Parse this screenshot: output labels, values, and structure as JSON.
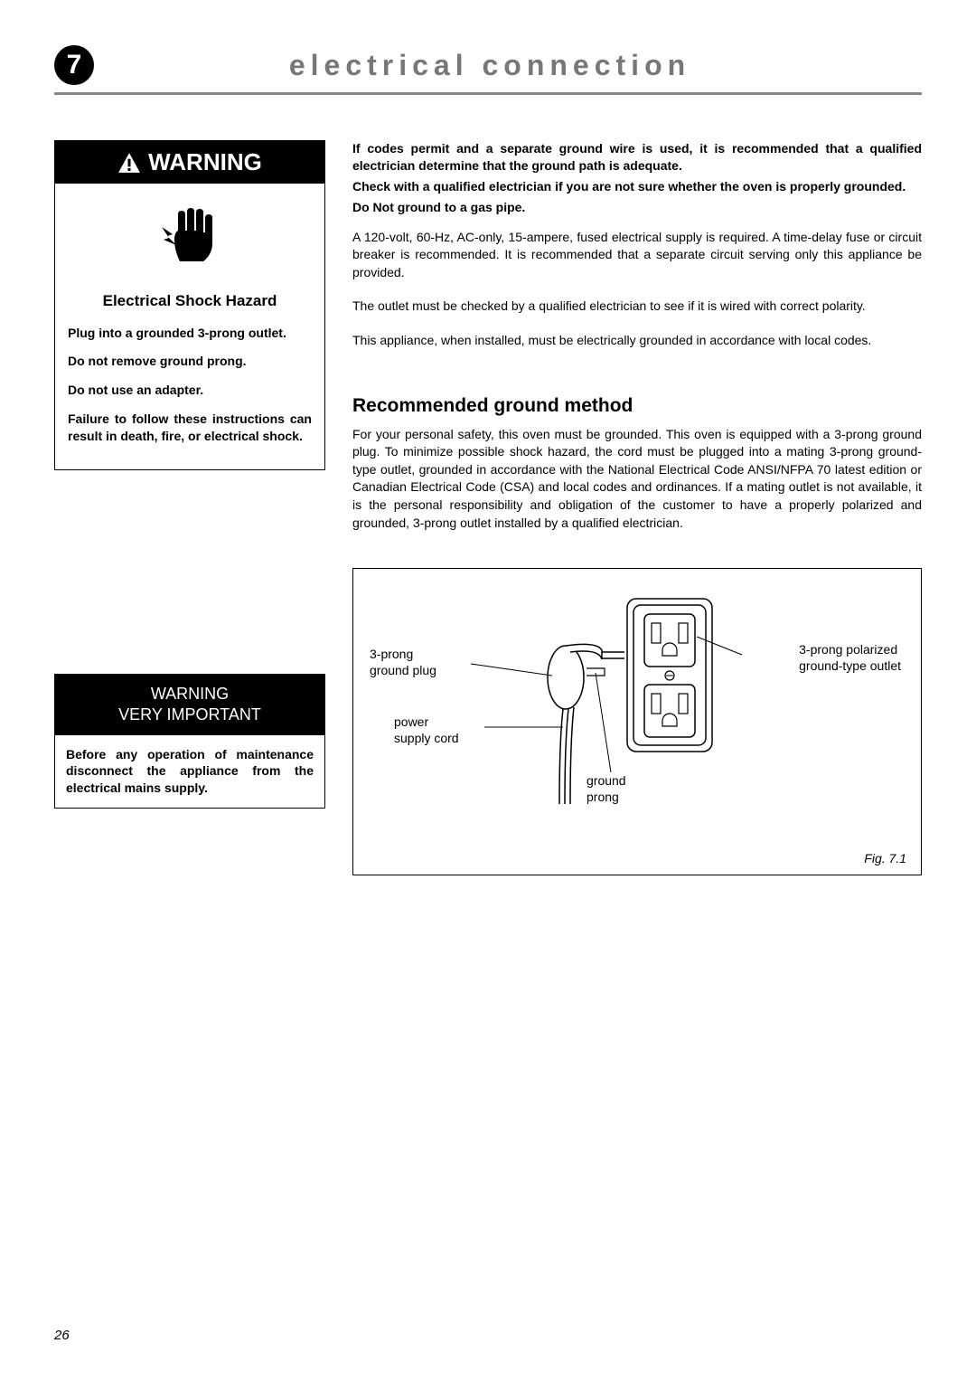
{
  "header": {
    "section_number": "7",
    "title": "electrical connection"
  },
  "warning_box": {
    "header": "WARNING",
    "hazard_title": "Electrical Shock Hazard",
    "lines": [
      "Plug into a grounded 3-prong outlet.",
      "Do not remove ground prong.",
      "Do not use an adapter.",
      "Failure to follow these instructions can result in death, fire, or electrical shock."
    ]
  },
  "important_box": {
    "header_line1": "WARNING",
    "header_line2": "VERY IMPORTANT",
    "body": "Before any operation of maintenance disconnect the appliance from the electrical mains supply."
  },
  "main": {
    "bold1": "If codes permit and a separate ground wire is used, it is recommended that a qualified electrician determine that the ground path is adequate.",
    "bold2": "Check with a qualified electrician if you are not sure whether the oven is properly grounded.",
    "bold3": "Do Not ground to a gas pipe.",
    "p1": "A 120-volt, 60-Hz, AC-only, 15-ampere, fused electrical supply is required. A time-delay fuse or circuit breaker is recommended. It is recommended that a separate circuit serving only this appliance be provided.",
    "p2": "The outlet must be checked by a qualified electrician to see if it is wired with correct polarity.",
    "p3": "This appliance, when installed, must be electrically grounded in accordance with local codes.",
    "subheading": "Recommended ground method",
    "p4": "For your personal safety, this oven must be grounded. This oven is equipped with a 3-prong ground plug. To minimize possible shock hazard, the cord must be plugged into a mating 3-prong ground-type outlet, grounded in accordance with the National Electrical Code ANSI/NFPA 70 latest edition or Canadian Electrical Code (CSA) and local codes and ordinances. If a mating outlet is not available, it is the personal responsibility and obligation of the customer to have a properly polarized and grounded, 3-prong outlet installed by a qualified electrician."
  },
  "figure": {
    "labels": {
      "plug": "3-prong\nground plug",
      "cord": "power\nsupply cord",
      "prong": "ground\nprong",
      "outlet": "3-prong polarized\nground-type outlet"
    },
    "caption": "Fig. 7.1"
  },
  "page_number": "26"
}
